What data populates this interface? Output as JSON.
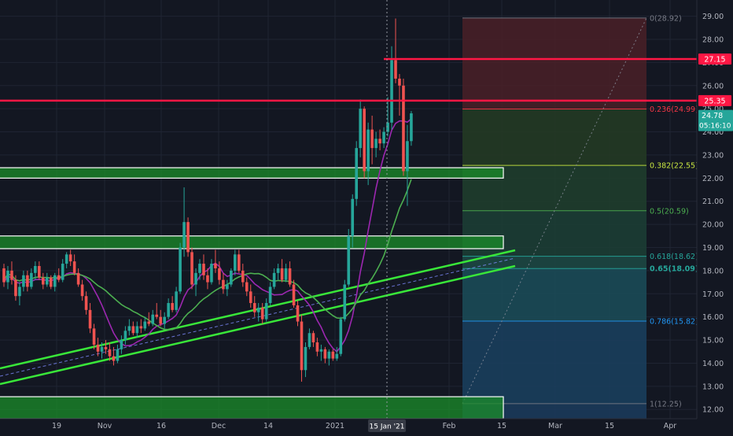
{
  "chart_data": {
    "type": "candlestick",
    "y_axis": {
      "ticks": [
        "12.00",
        "13.00",
        "14.00",
        "15.00",
        "16.00",
        "17.00",
        "18.00",
        "19.00",
        "20.00",
        "21.00",
        "22.00",
        "23.00",
        "24.00",
        "25.00",
        "26.00",
        "27.00",
        "28.00",
        "29.00"
      ],
      "range": [
        11.6,
        29.7
      ]
    },
    "x_axis": {
      "ticks": [
        "19",
        "Nov",
        "16",
        "Dec",
        "14",
        "2021",
        "Feb",
        "15",
        "Mar",
        "15",
        "Apr"
      ],
      "crosshair_label": "15 Jan '21"
    },
    "price_tags": {
      "resistance_top": "27.15",
      "resistance_mid": "25.35",
      "last_price": "24.78",
      "countdown": "05:16:10"
    },
    "fib_levels": [
      {
        "level": "0",
        "value": 28.92,
        "label": "0(28.92)",
        "color": "#787b86"
      },
      {
        "level": "0.236",
        "value": 24.99,
        "label": "0.236(24.99)",
        "color": "#f23645"
      },
      {
        "level": "0.382",
        "value": 22.55,
        "label": "0.382(22.55)",
        "color": "#c8e640"
      },
      {
        "level": "0.5",
        "value": 20.59,
        "label": "0.5(20.59)",
        "color": "#4caf50"
      },
      {
        "level": "0.618",
        "value": 18.62,
        "label": "0.618(18.62)",
        "color": "#26a69a"
      },
      {
        "level": "0.65",
        "value": 18.09,
        "label": "0.65(18.09)",
        "color": "#26a69a"
      },
      {
        "level": "0.786",
        "value": 15.82,
        "label": "0.786(15.82)",
        "color": "#2196f3"
      },
      {
        "level": "1",
        "value": 12.25,
        "label": "1(12.25)",
        "color": "#787b86"
      }
    ],
    "horizontal_lines": [
      27.15,
      25.35
    ],
    "zones": [
      {
        "name": "support-zone-1",
        "from": 22.0,
        "to": 22.45
      },
      {
        "name": "support-zone-2",
        "from": 18.95,
        "to": 19.5
      },
      {
        "name": "support-zone-3",
        "from": 11.6,
        "to": 12.55
      }
    ],
    "colors": {
      "up": "#26a69a",
      "down": "#ef5350",
      "resistance": "#ff1744",
      "zone": "#1b8e2a",
      "trendline": "#39e639",
      "ma_fast": "#9c27b0",
      "ma_slow": "#4caf50",
      "background": "#131722"
    },
    "candles": [
      [
        18.1,
        18.3,
        17.3,
        17.5
      ],
      [
        17.5,
        18.2,
        17.2,
        18.0
      ],
      [
        18.0,
        18.4,
        17.4,
        17.6
      ],
      [
        17.6,
        17.8,
        16.7,
        16.9
      ],
      [
        16.9,
        17.5,
        16.5,
        17.3
      ],
      [
        17.3,
        18.0,
        17.1,
        17.8
      ],
      [
        17.8,
        18.0,
        17.1,
        17.3
      ],
      [
        17.3,
        18.1,
        17.2,
        17.9
      ],
      [
        17.9,
        18.4,
        17.6,
        18.2
      ],
      [
        18.2,
        18.4,
        17.6,
        17.7
      ],
      [
        17.7,
        17.9,
        17.2,
        17.4
      ],
      [
        17.4,
        17.9,
        17.3,
        17.7
      ],
      [
        17.7,
        17.8,
        17.2,
        17.3
      ],
      [
        17.3,
        17.9,
        17.1,
        17.8
      ],
      [
        17.8,
        18.1,
        17.5,
        17.6
      ],
      [
        17.6,
        18.5,
        17.5,
        18.3
      ],
      [
        18.3,
        18.8,
        18.1,
        18.7
      ],
      [
        18.7,
        18.9,
        18.2,
        18.4
      ],
      [
        18.4,
        18.7,
        17.8,
        17.9
      ],
      [
        17.9,
        18.1,
        17.3,
        17.4
      ],
      [
        17.4,
        17.6,
        16.7,
        16.9
      ],
      [
        16.9,
        17.1,
        16.1,
        16.3
      ],
      [
        16.3,
        16.6,
        15.3,
        15.5
      ],
      [
        15.5,
        15.7,
        14.6,
        14.8
      ],
      [
        14.8,
        15.1,
        14.3,
        14.5
      ],
      [
        14.5,
        14.9,
        14.2,
        14.7
      ],
      [
        14.7,
        15.0,
        14.4,
        14.6
      ],
      [
        14.6,
        14.9,
        14.1,
        14.3
      ],
      [
        14.3,
        14.7,
        13.9,
        14.1
      ],
      [
        14.1,
        14.8,
        14.0,
        14.6
      ],
      [
        14.6,
        15.2,
        14.4,
        15.0
      ],
      [
        15.0,
        15.6,
        14.8,
        15.4
      ],
      [
        15.4,
        15.9,
        15.2,
        15.6
      ],
      [
        15.6,
        15.8,
        15.2,
        15.3
      ],
      [
        15.3,
        15.8,
        15.1,
        15.6
      ],
      [
        15.6,
        15.9,
        15.3,
        15.5
      ],
      [
        15.5,
        16.0,
        15.4,
        15.8
      ],
      [
        15.8,
        16.2,
        15.6,
        15.7
      ],
      [
        15.7,
        16.3,
        15.6,
        16.1
      ],
      [
        16.1,
        16.6,
        15.9,
        16.0
      ],
      [
        16.0,
        16.3,
        15.6,
        15.7
      ],
      [
        15.7,
        16.2,
        15.5,
        16.0
      ],
      [
        16.0,
        16.8,
        15.9,
        16.6
      ],
      [
        16.6,
        16.9,
        16.2,
        16.3
      ],
      [
        16.3,
        17.3,
        16.2,
        17.1
      ],
      [
        17.1,
        19.2,
        17.0,
        19.0
      ],
      [
        19.0,
        21.6,
        18.6,
        20.1
      ],
      [
        20.1,
        20.3,
        18.6,
        18.8
      ],
      [
        18.8,
        19.0,
        17.2,
        17.4
      ],
      [
        17.4,
        18.1,
        16.9,
        17.9
      ],
      [
        17.9,
        18.5,
        17.6,
        18.3
      ],
      [
        18.3,
        18.7,
        17.6,
        17.8
      ],
      [
        17.8,
        18.1,
        17.2,
        17.5
      ],
      [
        17.5,
        18.5,
        17.4,
        18.3
      ],
      [
        18.3,
        18.9,
        17.9,
        18.1
      ],
      [
        18.1,
        18.4,
        17.4,
        17.6
      ],
      [
        17.6,
        17.9,
        17.0,
        17.2
      ],
      [
        17.2,
        17.6,
        16.9,
        17.4
      ],
      [
        17.4,
        18.1,
        17.3,
        18.0
      ],
      [
        18.0,
        18.9,
        17.8,
        18.7
      ],
      [
        18.7,
        18.9,
        17.9,
        18.0
      ],
      [
        18.0,
        18.3,
        17.3,
        17.5
      ],
      [
        17.5,
        17.7,
        16.9,
        17.1
      ],
      [
        17.1,
        17.4,
        16.4,
        16.6
      ],
      [
        16.6,
        16.9,
        16.0,
        16.2
      ],
      [
        16.2,
        16.6,
        15.8,
        16.4
      ],
      [
        16.4,
        16.6,
        15.7,
        15.9
      ],
      [
        15.9,
        16.8,
        15.8,
        16.6
      ],
      [
        16.6,
        17.5,
        16.5,
        17.3
      ],
      [
        17.3,
        18.1,
        17.2,
        17.9
      ],
      [
        17.9,
        18.3,
        17.6,
        18.1
      ],
      [
        18.1,
        18.5,
        17.5,
        17.6
      ],
      [
        17.6,
        18.3,
        17.5,
        18.1
      ],
      [
        18.1,
        18.4,
        17.3,
        17.4
      ],
      [
        17.4,
        17.6,
        16.4,
        16.5
      ],
      [
        16.5,
        16.7,
        15.6,
        15.8
      ],
      [
        15.8,
        16.1,
        13.2,
        13.7
      ],
      [
        13.7,
        14.9,
        13.4,
        14.7
      ],
      [
        14.7,
        15.5,
        14.6,
        15.3
      ],
      [
        15.3,
        15.4,
        14.7,
        14.9
      ],
      [
        14.9,
        15.1,
        14.3,
        14.5
      ],
      [
        14.5,
        14.8,
        14.1,
        14.6
      ],
      [
        14.6,
        14.7,
        14.0,
        14.2
      ],
      [
        14.2,
        14.6,
        13.9,
        14.5
      ],
      [
        14.5,
        14.6,
        14.1,
        14.2
      ],
      [
        14.2,
        14.7,
        14.1,
        14.4
      ],
      [
        14.4,
        16.0,
        14.3,
        15.9
      ],
      [
        15.9,
        17.6,
        15.8,
        17.4
      ],
      [
        17.4,
        19.8,
        17.3,
        19.5
      ],
      [
        19.5,
        21.3,
        19.0,
        21.1
      ],
      [
        21.1,
        23.6,
        20.8,
        23.3
      ],
      [
        23.3,
        25.4,
        22.9,
        25.0
      ],
      [
        25.0,
        25.1,
        22.0,
        22.3
      ],
      [
        22.3,
        24.4,
        21.7,
        24.1
      ],
      [
        24.1,
        24.7,
        22.6,
        23.3
      ],
      [
        23.3,
        24.0,
        22.9,
        23.7
      ],
      [
        23.7,
        24.1,
        23.2,
        23.5
      ],
      [
        23.5,
        24.2,
        23.3,
        24.0
      ],
      [
        24.0,
        25.5,
        23.8,
        24.4
      ],
      [
        24.4,
        27.7,
        24.1,
        27.1
      ],
      [
        27.1,
        28.9,
        26.1,
        26.3
      ],
      [
        26.3,
        26.5,
        24.7,
        26.0
      ],
      [
        26.0,
        26.3,
        22.1,
        22.3
      ],
      [
        22.3,
        24.3,
        20.8,
        23.6
      ],
      [
        23.6,
        24.9,
        23.4,
        24.8
      ]
    ]
  }
}
